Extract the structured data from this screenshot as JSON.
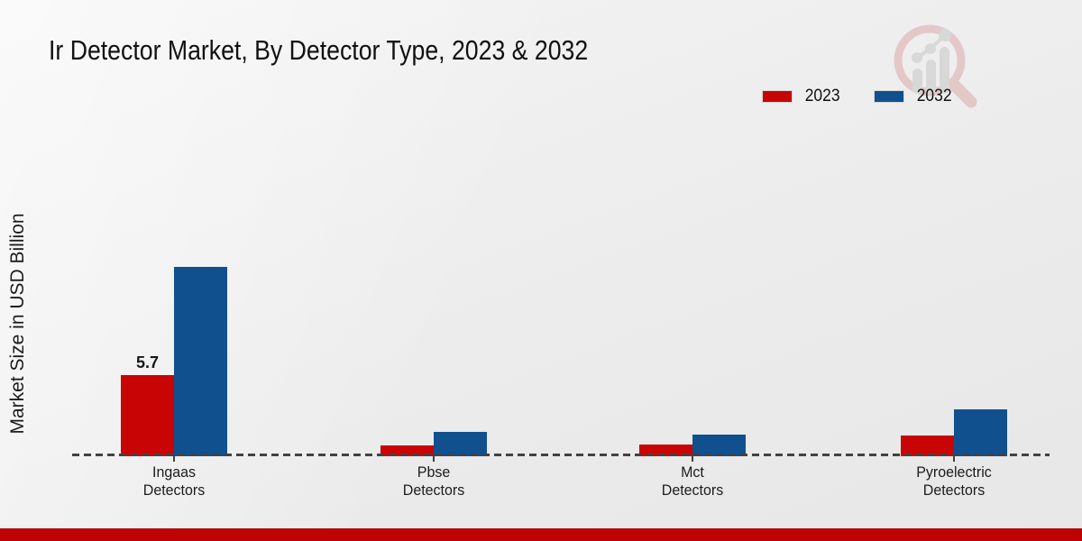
{
  "title": "Ir Detector Market, By Detector Type, 2023 & 2032",
  "y_axis_label": "Market Size in USD Billion",
  "legend": {
    "position": "top-right",
    "items": [
      {
        "label": "2023",
        "color": "#c80404"
      },
      {
        "label": "2032",
        "color": "#11508f"
      }
    ]
  },
  "chart_data": {
    "type": "bar",
    "title": "Ir Detector Market, By Detector Type, 2023 & 2032",
    "xlabel": "",
    "ylabel": "Market Size in USD Billion",
    "categories": [
      "Ingaas Detectors",
      "Pbse Detectors",
      "Mct Detectors",
      "Pyroelectric Detectors"
    ],
    "category_label_lines": [
      [
        "Ingaas",
        "Detectors"
      ],
      [
        "Pbse",
        "Detectors"
      ],
      [
        "Mct",
        "Detectors"
      ],
      [
        "Pyroelectric",
        "Detectors"
      ]
    ],
    "series": [
      {
        "name": "2023",
        "color": "#c80404",
        "values": [
          5.7,
          0.75,
          0.8,
          1.45
        ],
        "data_labels": [
          "5.7",
          "",
          "",
          ""
        ]
      },
      {
        "name": "2032",
        "color": "#11508f",
        "values": [
          13.3,
          1.7,
          1.5,
          3.3
        ],
        "data_labels": [
          "",
          "",
          "",
          ""
        ]
      }
    ],
    "ylim": [
      0,
      14
    ],
    "grid": false,
    "y_axis_ticks_visible": false,
    "baseline_style": "dashed",
    "legend_position": "top-right"
  },
  "watermark": {
    "name": "market-research-magnifier-logo"
  },
  "colors": {
    "series_2023": "#c80404",
    "series_2032": "#11508f",
    "footer_bar": "#bf0202",
    "background": "#ededed",
    "baseline": "#424242"
  }
}
